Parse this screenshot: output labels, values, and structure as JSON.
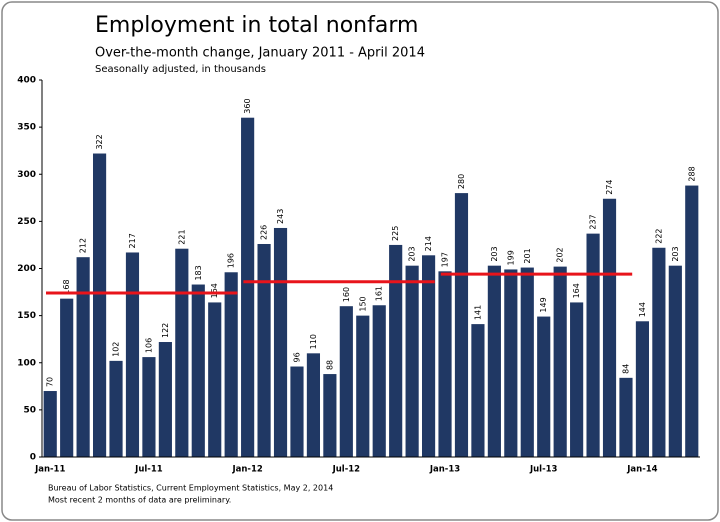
{
  "chart_data": {
    "type": "bar",
    "title": "Employment in total nonfarm",
    "subtitle": "Over-the-month change, January 2011 - April 2014",
    "subtitle2": "Seasonally adjusted, in thousands",
    "footnotes": [
      "Bureau of Labor Statistics, Current Employment Statistics, May 2, 2014",
      "Most recent 2 months of data are preliminary."
    ],
    "categories": [
      "Jan-11",
      null,
      null,
      null,
      null,
      null,
      "Jul-11",
      null,
      null,
      null,
      null,
      null,
      "Jan-12",
      null,
      null,
      null,
      null,
      null,
      "Jul-12",
      null,
      null,
      null,
      null,
      null,
      "Jan-13",
      null,
      null,
      null,
      null,
      null,
      "Jul-13",
      null,
      null,
      null,
      null,
      null,
      "Jan-14",
      null,
      null,
      null
    ],
    "values": [
      70,
      168,
      212,
      322,
      102,
      217,
      106,
      122,
      221,
      183,
      164,
      196,
      360,
      226,
      243,
      96,
      110,
      88,
      160,
      150,
      161,
      225,
      203,
      214,
      197,
      280,
      141,
      203,
      199,
      201,
      149,
      202,
      164,
      237,
      274,
      84,
      144,
      222,
      203,
      288
    ],
    "color": "#203864",
    "annual_averages": [
      174,
      186,
      194
    ],
    "average_color": "#e8141b",
    "ylim": [
      0,
      400
    ],
    "yticks": [
      0,
      50,
      100,
      150,
      200,
      250,
      300,
      350,
      400
    ],
    "grid": false
  }
}
